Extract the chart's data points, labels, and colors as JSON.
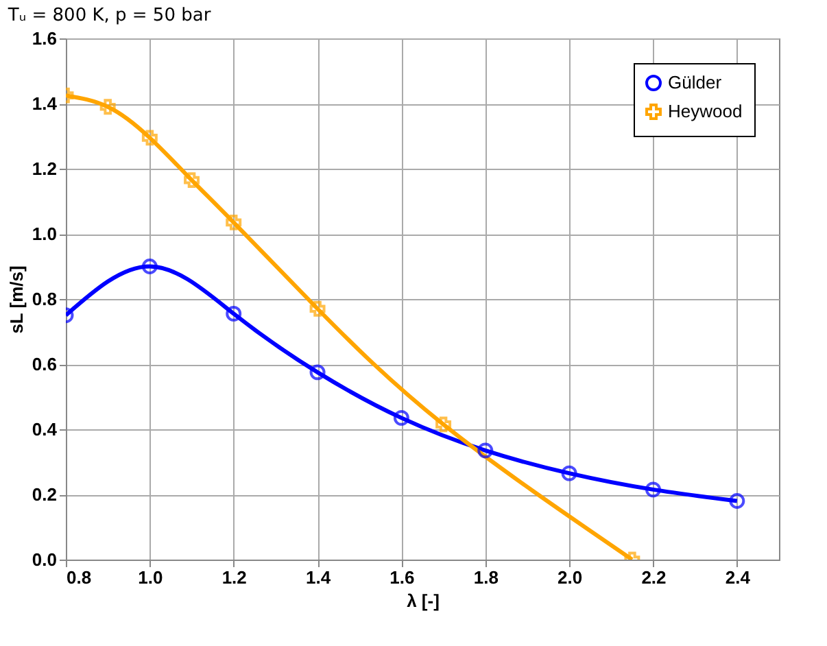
{
  "chart_data": {
    "type": "line",
    "title": "Tᵤ = 800 K, p = 50 bar",
    "xlabel": "λ [-]",
    "ylabel": "sL [m/s]",
    "xlim": [
      0.8,
      2.5
    ],
    "xticks": [
      0.8,
      {
        "value": 1,
        "label": "1.0"
      },
      1.2,
      1.4,
      1.6,
      1.8,
      {
        "value": 2,
        "label": "2.0"
      },
      2.2,
      2.4
    ],
    "ylim": [
      0,
      1.6
    ],
    "yticks": [
      {
        "value": 0,
        "label": "0.0"
      },
      0.2,
      0.4,
      0.6,
      0.8,
      {
        "value": 1,
        "label": "1.0"
      },
      1.2,
      1.4,
      1.6
    ],
    "grid": true,
    "legend": "top right",
    "line_style": "solid",
    "series": [
      {
        "name": "Gülder",
        "color": "#0000ff",
        "marker": "circle",
        "x": [
          0.8,
          1.0,
          1.2,
          1.4,
          1.6,
          1.8,
          2.0,
          2.2,
          2.4
        ],
        "values": [
          0.75,
          0.9,
          0.755,
          0.575,
          0.435,
          0.335,
          0.265,
          0.215,
          0.18
        ]
      },
      {
        "name": "Heywood",
        "color": "#ffa500",
        "marker": "cross",
        "x": [
          0.8,
          0.9,
          1.0,
          1.1,
          1.2,
          1.4,
          1.7,
          2.15
        ],
        "values": [
          1.425,
          1.39,
          1.295,
          1.165,
          1.035,
          0.77,
          0.415,
          0.0
        ]
      }
    ]
  }
}
